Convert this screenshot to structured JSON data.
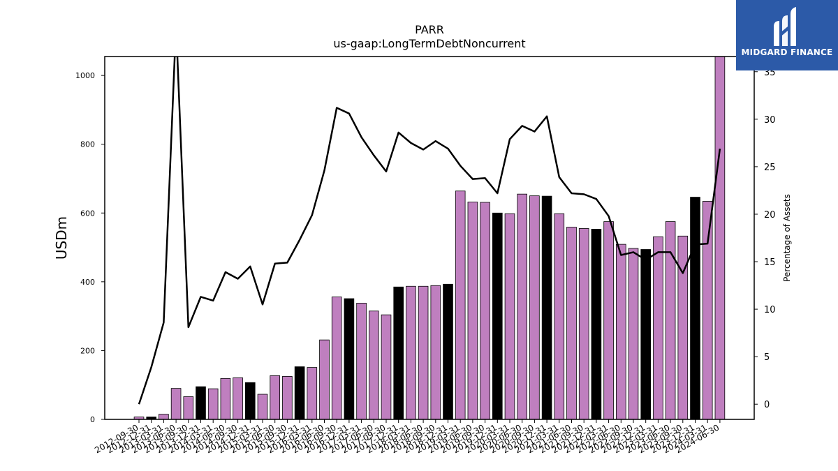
{
  "chart_data": {
    "type": "bar",
    "title": "PARR",
    "subtitle": "us-gaap:LongTermDebtNoncurrent",
    "ylabel": "USDm",
    "y2label": "Percentage of Assets",
    "ylim": [
      0,
      1055
    ],
    "y2lim": [
      -1.6,
      36.6
    ],
    "yticks": [
      0,
      200,
      400,
      600,
      800,
      1000
    ],
    "y2ticks": [
      0,
      5,
      10,
      15,
      20,
      25,
      30,
      35
    ],
    "categories": [
      "2012-09-30",
      "2012-12-31",
      "2013-03-31",
      "2013-06-30",
      "2013-09-30",
      "2013-12-31",
      "2014-03-31",
      "2014-06-30",
      "2014-09-30",
      "2014-12-31",
      "2015-03-31",
      "2015-06-30",
      "2015-09-30",
      "2015-12-31",
      "2016-03-31",
      "2016-06-30",
      "2016-09-30",
      "2016-12-31",
      "2017-03-31",
      "2017-06-30",
      "2017-09-30",
      "2017-12-31",
      "2018-03-31",
      "2018-06-30",
      "2018-09-30",
      "2018-12-31",
      "2019-03-31",
      "2019-06-30",
      "2019-09-30",
      "2019-12-31",
      "2020-03-31",
      "2020-06-30",
      "2020-09-30",
      "2020-12-31",
      "2021-03-31",
      "2021-06-30",
      "2021-09-30",
      "2021-12-31",
      "2022-03-31",
      "2022-06-30",
      "2022-09-30",
      "2022-12-31",
      "2023-03-31",
      "2023-06-30",
      "2023-09-30",
      "2023-12-31",
      "2024-03-31",
      "2024-06-30"
    ],
    "series": [
      {
        "type": "bar",
        "values": [
          7,
          7,
          15,
          90,
          66,
          95,
          89,
          119,
          121,
          107,
          73,
          127,
          125,
          153,
          151,
          231,
          356,
          351,
          338,
          315,
          304,
          385,
          387,
          387,
          389,
          393,
          664,
          632,
          631,
          600,
          598,
          655,
          650,
          649,
          598,
          559,
          555,
          553,
          575,
          509,
          497,
          494,
          531,
          575,
          533,
          646,
          634,
          1070
        ],
        "highlight_color": "#000000",
        "base_color": "#bf7fbf",
        "highlight_categories": [
          "2012-12-31",
          "2013-12-31",
          "2014-12-31",
          "2015-12-31",
          "2016-12-31",
          "2017-12-31",
          "2018-12-31",
          "2019-12-31",
          "2020-12-31",
          "2021-12-31",
          "2022-12-31",
          "2023-12-31"
        ]
      },
      {
        "type": "line",
        "axis": "right",
        "color": "#000000",
        "values": [
          0,
          3.9,
          8.6,
          40,
          8.1,
          11.3,
          10.9,
          13.9,
          13.2,
          14.5,
          10.5,
          14.8,
          14.9,
          17.3,
          19.9,
          24.6,
          31.2,
          30.6,
          28.1,
          26.2,
          24.5,
          28.6,
          27.5,
          26.8,
          27.7,
          26.9,
          25.1,
          23.7,
          23.8,
          22.2,
          27.9,
          29.3,
          28.7,
          30.3,
          23.9,
          22.2,
          22.1,
          21.6,
          19.8,
          15.7,
          16,
          15.2,
          16,
          16,
          13.8,
          16.8,
          16.9,
          26.9
        ]
      }
    ],
    "grid": false
  },
  "logo": {
    "text": "MIDGARD FINANCE",
    "color": "#2c5aa8"
  }
}
